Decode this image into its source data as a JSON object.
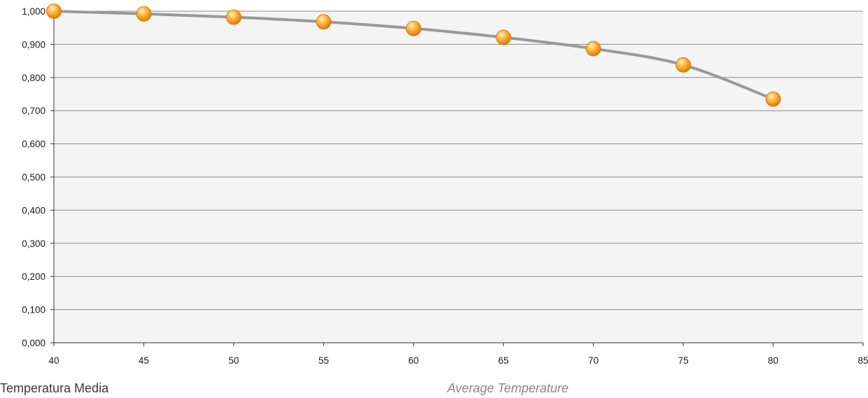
{
  "chart_data": {
    "type": "line",
    "x": [
      40,
      45,
      50,
      55,
      60,
      65,
      70,
      75,
      80
    ],
    "y": [
      1.0,
      0.992,
      0.982,
      0.968,
      0.948,
      0.921,
      0.887,
      0.838,
      0.735
    ],
    "xlim": [
      40,
      85
    ],
    "ylim": [
      0,
      1.0
    ],
    "x_ticks": [
      40,
      45,
      50,
      55,
      60,
      65,
      70,
      75,
      80,
      85
    ],
    "x_tick_labels": [
      "40",
      "45",
      "50",
      "55",
      "60",
      "65",
      "70",
      "75",
      "80",
      "85"
    ],
    "y_ticks": [
      0,
      0.1,
      0.2,
      0.3,
      0.4,
      0.5,
      0.6,
      0.7,
      0.8,
      0.9,
      1.0
    ],
    "y_tick_labels": [
      "0,000",
      "0,100",
      "0,200",
      "0,300",
      "0,400",
      "0,500",
      "0,600",
      "0,700",
      "0,800",
      "0,900",
      "1,000"
    ],
    "xlabel_italian": "Temperatura Media",
    "xlabel_english": "Average Temperature",
    "grid": "horizontal",
    "line_color": "#999999",
    "marker_color": "#f29400",
    "plot_background": "#f4f4f4"
  }
}
